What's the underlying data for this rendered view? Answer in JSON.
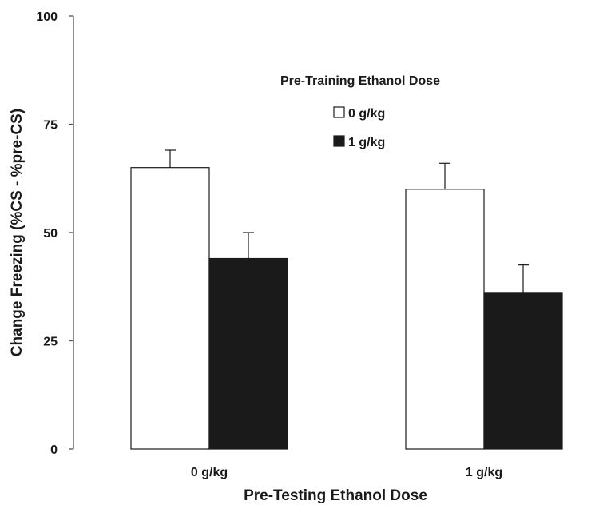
{
  "chart_data": {
    "type": "bar",
    "title": "",
    "xlabel": "Pre-Testing Ethanol Dose",
    "ylabel": "Change Freezing (%CS - %pre-CS)",
    "categories": [
      "0 g/kg",
      "1 g/kg"
    ],
    "ylim": [
      0,
      100
    ],
    "yticks": [
      "0",
      "25",
      "50",
      "75",
      "100"
    ],
    "legend": {
      "title": "Pre-Training Ethanol Dose",
      "placement": "top-center"
    },
    "series": [
      {
        "name": "0 g/kg",
        "color": "#ffffff",
        "values": [
          65,
          60
        ],
        "errors": [
          4,
          6
        ]
      },
      {
        "name": "1 g/kg",
        "color": "#1a1a1a",
        "values": [
          44,
          36
        ],
        "errors": [
          6,
          6.5
        ]
      }
    ],
    "grid": false
  }
}
